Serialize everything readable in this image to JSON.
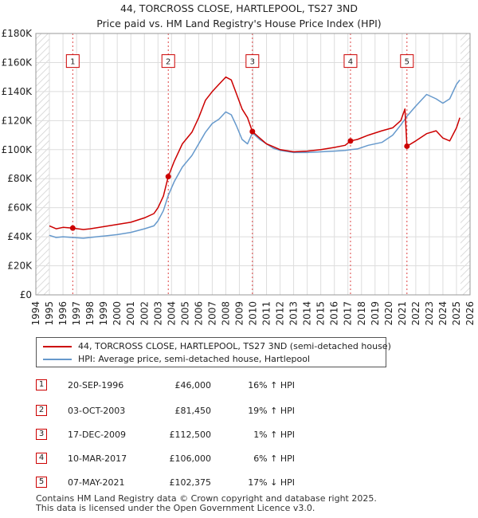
{
  "chart_data": {
    "type": "line",
    "title": "44, TORCROSS CLOSE, HARTLEPOOL, TS27 3ND",
    "subtitle": "Price paid vs. HM Land Registry's House Price Index (HPI)",
    "xlim": [
      1994,
      2026
    ],
    "ylim": [
      0,
      180000
    ],
    "x_ticks": [
      "1994",
      "1995",
      "1996",
      "1997",
      "1998",
      "1999",
      "2000",
      "2001",
      "2002",
      "2003",
      "2004",
      "2005",
      "2006",
      "2007",
      "2008",
      "2009",
      "2010",
      "2011",
      "2012",
      "2013",
      "2014",
      "2015",
      "2016",
      "2017",
      "2018",
      "2019",
      "2020",
      "2021",
      "2022",
      "2023",
      "2024",
      "2025",
      "2026"
    ],
    "y_ticks": [
      {
        "value": 0,
        "label": "£0"
      },
      {
        "value": 20000,
        "label": "£20K"
      },
      {
        "value": 40000,
        "label": "£40K"
      },
      {
        "value": 60000,
        "label": "£60K"
      },
      {
        "value": 80000,
        "label": "£80K"
      },
      {
        "value": 100000,
        "label": "£100K"
      },
      {
        "value": 120000,
        "label": "£120K"
      },
      {
        "value": 140000,
        "label": "£140K"
      },
      {
        "value": 160000,
        "label": "£160K"
      },
      {
        "value": 180000,
        "label": "£180K"
      }
    ],
    "grid": true,
    "data_range": [
      1995,
      2025.3
    ],
    "series": [
      {
        "name": "44, TORCROSS CLOSE, HARTLEPOOL, TS27 3ND (semi-detached house)",
        "color": "#cc0000",
        "points": [
          [
            1995.0,
            47500
          ],
          [
            1995.5,
            45500
          ],
          [
            1996.0,
            46500
          ],
          [
            1996.72,
            46000
          ],
          [
            1997.5,
            45000
          ],
          [
            1998.0,
            45500
          ],
          [
            1999.0,
            47000
          ],
          [
            2000.0,
            48500
          ],
          [
            2001.0,
            50000
          ],
          [
            2002.0,
            53000
          ],
          [
            2002.7,
            56000
          ],
          [
            2003.0,
            60000
          ],
          [
            2003.4,
            68000
          ],
          [
            2003.76,
            81450
          ],
          [
            2004.2,
            92000
          ],
          [
            2004.8,
            104000
          ],
          [
            2005.5,
            112000
          ],
          [
            2006.0,
            122000
          ],
          [
            2006.5,
            134000
          ],
          [
            2007.0,
            140000
          ],
          [
            2007.5,
            145000
          ],
          [
            2008.0,
            150000
          ],
          [
            2008.4,
            148000
          ],
          [
            2008.8,
            138000
          ],
          [
            2009.2,
            128000
          ],
          [
            2009.6,
            122000
          ],
          [
            2009.96,
            112500
          ],
          [
            2010.5,
            108000
          ],
          [
            2011.0,
            104000
          ],
          [
            2011.5,
            102000
          ],
          [
            2012.0,
            100000
          ],
          [
            2013.0,
            98500
          ],
          [
            2014.0,
            99000
          ],
          [
            2015.0,
            100000
          ],
          [
            2016.0,
            101500
          ],
          [
            2016.8,
            103000
          ],
          [
            2017.19,
            106000
          ],
          [
            2017.7,
            107000
          ],
          [
            2018.5,
            110000
          ],
          [
            2019.5,
            113000
          ],
          [
            2020.3,
            115000
          ],
          [
            2020.9,
            120000
          ],
          [
            2021.2,
            128000
          ],
          [
            2021.35,
            102375
          ],
          [
            2022.0,
            106000
          ],
          [
            2022.8,
            111000
          ],
          [
            2023.5,
            113000
          ],
          [
            2024.0,
            108000
          ],
          [
            2024.5,
            106000
          ],
          [
            2025.0,
            115000
          ],
          [
            2025.25,
            122000
          ]
        ]
      },
      {
        "name": "HPI: Average price, semi-detached house, Hartlepool",
        "color": "#6699cc",
        "points": [
          [
            1995.0,
            41000
          ],
          [
            1995.5,
            39500
          ],
          [
            1996.0,
            40000
          ],
          [
            1996.72,
            39500
          ],
          [
            1997.5,
            39000
          ],
          [
            1998.0,
            39500
          ],
          [
            1999.0,
            40500
          ],
          [
            2000.0,
            41500
          ],
          [
            2001.0,
            43000
          ],
          [
            2002.0,
            45500
          ],
          [
            2002.7,
            47500
          ],
          [
            2003.0,
            51000
          ],
          [
            2003.4,
            58000
          ],
          [
            2003.76,
            68500
          ],
          [
            2004.2,
            78000
          ],
          [
            2004.8,
            88000
          ],
          [
            2005.5,
            96000
          ],
          [
            2006.0,
            104000
          ],
          [
            2006.5,
            112000
          ],
          [
            2007.0,
            118000
          ],
          [
            2007.5,
            121000
          ],
          [
            2008.0,
            126000
          ],
          [
            2008.4,
            124000
          ],
          [
            2008.8,
            116000
          ],
          [
            2009.2,
            107000
          ],
          [
            2009.6,
            104000
          ],
          [
            2009.96,
            111500
          ],
          [
            2010.5,
            107000
          ],
          [
            2011.0,
            104000
          ],
          [
            2011.5,
            101000
          ],
          [
            2012.0,
            99500
          ],
          [
            2013.0,
            98000
          ],
          [
            2014.0,
            98000
          ],
          [
            2015.0,
            98500
          ],
          [
            2016.0,
            99000
          ],
          [
            2016.8,
            99500
          ],
          [
            2017.19,
            100000
          ],
          [
            2017.7,
            100500
          ],
          [
            2018.5,
            103000
          ],
          [
            2019.5,
            105000
          ],
          [
            2020.3,
            110000
          ],
          [
            2020.9,
            117000
          ],
          [
            2021.2,
            121000
          ],
          [
            2021.35,
            123000
          ],
          [
            2022.0,
            130000
          ],
          [
            2022.8,
            138000
          ],
          [
            2023.5,
            135000
          ],
          [
            2024.0,
            132000
          ],
          [
            2024.5,
            135000
          ],
          [
            2025.0,
            145000
          ],
          [
            2025.25,
            148000
          ]
        ]
      }
    ],
    "sales": [
      {
        "label": "1",
        "x": 1996.72,
        "y": 46000
      },
      {
        "label": "2",
        "x": 2003.76,
        "y": 81450
      },
      {
        "label": "3",
        "x": 2009.96,
        "y": 112500
      },
      {
        "label": "4",
        "x": 2017.19,
        "y": 106000
      },
      {
        "label": "5",
        "x": 2021.35,
        "y": 102375
      }
    ],
    "marker_box_value": 161000
  },
  "legend": {
    "position": "below",
    "entries": [
      {
        "label": "44, TORCROSS CLOSE, HARTLEPOOL, TS27 3ND (semi-detached house)",
        "color": "#cc0000"
      },
      {
        "label": "HPI: Average price, semi-detached house, Hartlepool",
        "color": "#6699cc"
      }
    ]
  },
  "sales_table": [
    {
      "num": "1",
      "date": "20-SEP-1996",
      "price": "£46,000",
      "hpi": "16% ↑ HPI"
    },
    {
      "num": "2",
      "date": "03-OCT-2003",
      "price": "£81,450",
      "hpi": "19% ↑ HPI"
    },
    {
      "num": "3",
      "date": "17-DEC-2009",
      "price": "£112,500",
      "hpi": "1% ↑ HPI"
    },
    {
      "num": "4",
      "date": "10-MAR-2017",
      "price": "£106,000",
      "hpi": "6% ↑ HPI"
    },
    {
      "num": "5",
      "date": "07-MAY-2021",
      "price": "£102,375",
      "hpi": "17% ↓ HPI"
    }
  ],
  "footer": {
    "line1": "Contains HM Land Registry data © Crown copyright and database right 2025.",
    "line2": "This data is licensed under the Open Government Licence v3.0."
  },
  "colors": {
    "property": "#cc0000",
    "hpi": "#6699cc",
    "plot_background": "#ffffff",
    "hatch": "#cccccc",
    "grid": "#dddddd"
  }
}
